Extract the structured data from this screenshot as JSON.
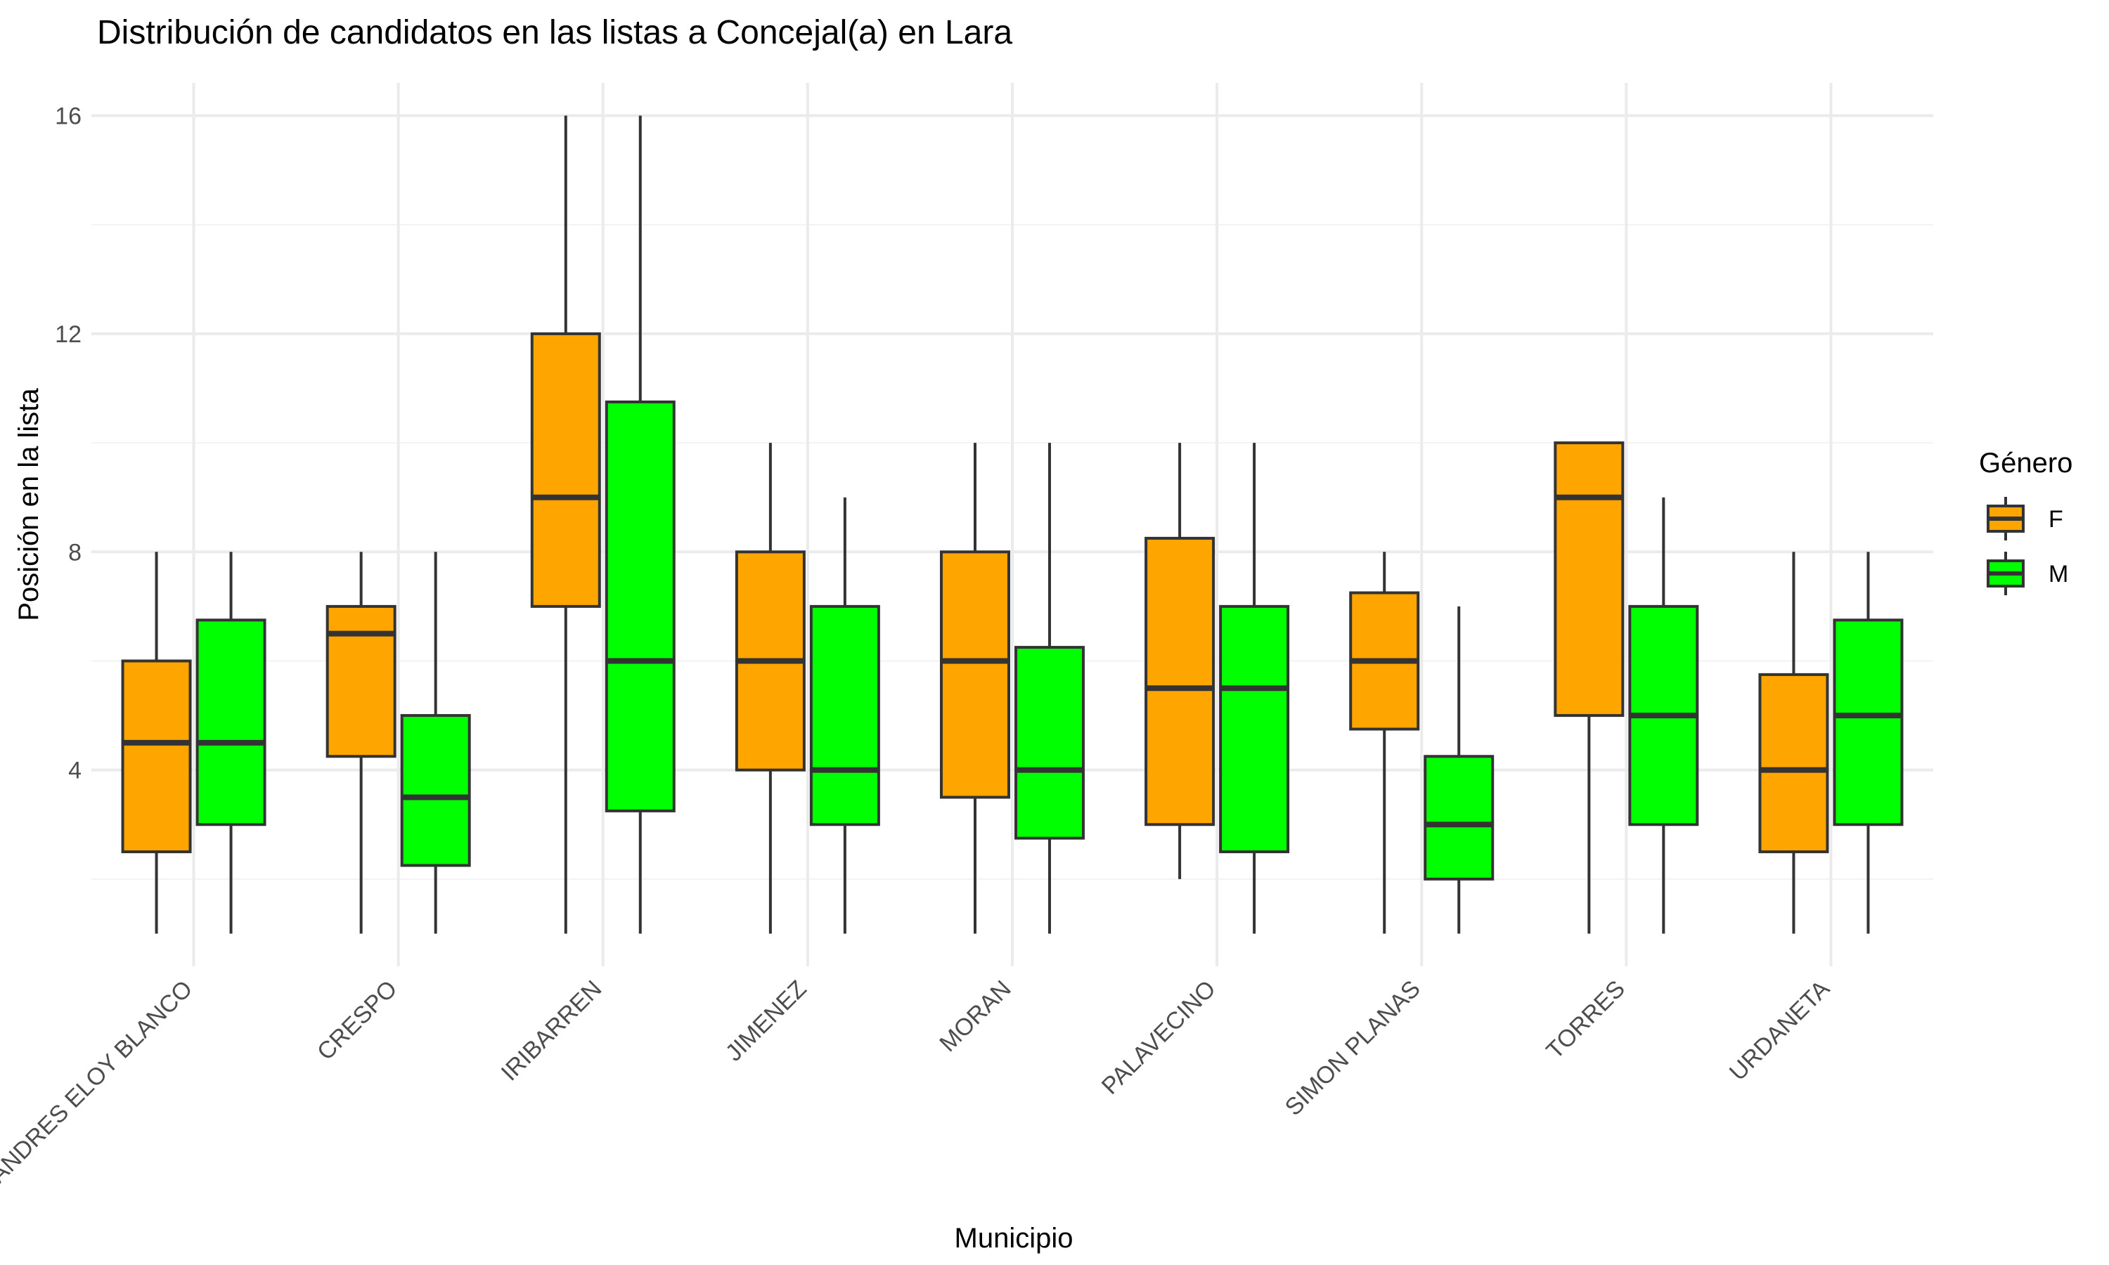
{
  "chart_data": {
    "type": "boxplot",
    "title": "Distribución de candidatos en las listas a Concejal(a) en Lara",
    "xlabel": "Municipio",
    "ylabel": "Posición en la lista",
    "ylim": [
      0.4,
      16.6
    ],
    "yticks": [
      4,
      8,
      12,
      16
    ],
    "grid": true,
    "legend": {
      "title": "Género",
      "position": "right"
    },
    "categories": [
      "ANDRES ELOY BLANCO",
      "CRESPO",
      "IRIBARREN",
      "JIMENEZ",
      "MORAN",
      "PALAVECINO",
      "SIMON PLANAS",
      "TORRES",
      "URDANETA"
    ],
    "series": [
      {
        "name": "F",
        "color": "#FFA500",
        "boxes": [
          {
            "min": 1,
            "q1": 2.5,
            "median": 4.5,
            "q3": 6,
            "max": 8
          },
          {
            "min": 1,
            "q1": 4.25,
            "median": 6.5,
            "q3": 7,
            "max": 8
          },
          {
            "min": 1,
            "q1": 7,
            "median": 9,
            "q3": 12,
            "max": 16
          },
          {
            "min": 1,
            "q1": 4,
            "median": 6,
            "q3": 8,
            "max": 10
          },
          {
            "min": 1,
            "q1": 3.5,
            "median": 6,
            "q3": 8,
            "max": 10
          },
          {
            "min": 2,
            "q1": 3,
            "median": 5.5,
            "q3": 8.25,
            "max": 10
          },
          {
            "min": 1,
            "q1": 4.75,
            "median": 6,
            "q3": 7.25,
            "max": 8
          },
          {
            "min": 1,
            "q1": 5,
            "median": 9,
            "q3": 10,
            "max": 10
          },
          {
            "min": 1,
            "q1": 2.5,
            "median": 4,
            "q3": 5.75,
            "max": 8
          }
        ]
      },
      {
        "name": "M",
        "color": "#00FF00",
        "boxes": [
          {
            "min": 1,
            "q1": 3,
            "median": 4.5,
            "q3": 6.75,
            "max": 8
          },
          {
            "min": 1,
            "q1": 2.25,
            "median": 3.5,
            "q3": 5,
            "max": 8
          },
          {
            "min": 1,
            "q1": 3.25,
            "median": 6,
            "q3": 10.75,
            "max": 16
          },
          {
            "min": 1,
            "q1": 3,
            "median": 4,
            "q3": 7,
            "max": 9
          },
          {
            "min": 1,
            "q1": 2.75,
            "median": 4,
            "q3": 6.25,
            "max": 10
          },
          {
            "min": 1,
            "q1": 2.5,
            "median": 5.5,
            "q3": 7,
            "max": 10
          },
          {
            "min": 1,
            "q1": 2,
            "median": 3,
            "q3": 4.25,
            "max": 7
          },
          {
            "min": 1,
            "q1": 3,
            "median": 5,
            "q3": 7,
            "max": 9
          },
          {
            "min": 1,
            "q1": 3,
            "median": 5,
            "q3": 6.75,
            "max": 8
          }
        ]
      }
    ]
  }
}
